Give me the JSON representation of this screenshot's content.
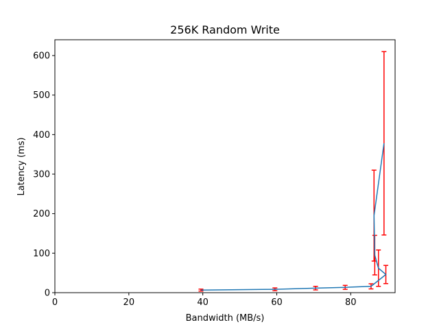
{
  "chart_data": {
    "type": "line",
    "title": "256K  Random Write",
    "xlabel": "Bandwidth (MB/s)",
    "ylabel": "Latency (ms)",
    "xlim": [
      0,
      92
    ],
    "ylim": [
      0,
      640
    ],
    "xticks": [
      0,
      20,
      40,
      60,
      80
    ],
    "yticks": [
      0,
      100,
      200,
      300,
      400,
      500,
      600
    ],
    "grid": false,
    "series": [
      {
        "line_color": "#1f77b4",
        "error_color": "#ff0000",
        "points": [
          {
            "x": 39.5,
            "y": 6.5,
            "err": 2.5
          },
          {
            "x": 59.5,
            "y": 8.5,
            "err": 3.5
          },
          {
            "x": 70.5,
            "y": 11.5,
            "err": 4.5
          },
          {
            "x": 78.5,
            "y": 13.5,
            "err": 5.0
          },
          {
            "x": 85.5,
            "y": 16.0,
            "err": 6.5
          },
          {
            "x": 89.5,
            "y": 46.0,
            "err": 23.0
          },
          {
            "x": 87.5,
            "y": 62.0,
            "err": 46.0
          },
          {
            "x": 86.5,
            "y": 95.0,
            "err": 50.0
          },
          {
            "x": 86.3,
            "y": 195.0,
            "err": 115.0
          },
          {
            "x": 89.0,
            "y": 378.0,
            "err": 232.0
          }
        ]
      }
    ]
  }
}
